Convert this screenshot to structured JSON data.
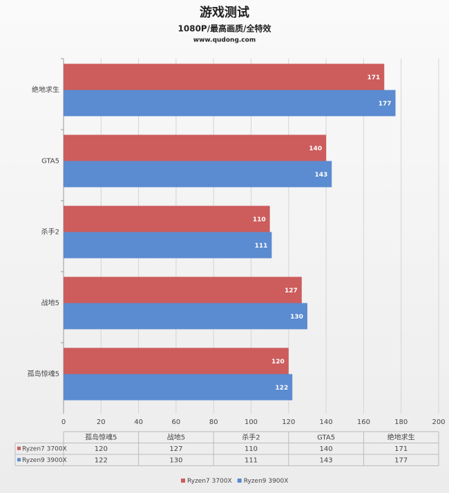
{
  "chart_data": {
    "type": "bar",
    "orientation": "horizontal",
    "title": "游戏测试",
    "subtitle": "1080P/最高画质/全特效",
    "source": "www.qudong.com",
    "categories": [
      "孤岛惊魂5",
      "战地5",
      "杀手2",
      "GTA5",
      "绝地求生"
    ],
    "series": [
      {
        "name": "Ryzen7 3700X",
        "color": "#cd5c5c",
        "values": [
          120,
          127,
          110,
          140,
          171
        ]
      },
      {
        "name": "Ryzen9 3900X",
        "color": "#5b8bd0",
        "values": [
          122,
          130,
          111,
          143,
          177
        ]
      }
    ],
    "xlim": [
      0,
      200
    ],
    "xticks": [
      0,
      20,
      40,
      60,
      80,
      100,
      120,
      140,
      160,
      180,
      200
    ],
    "grid": true
  }
}
